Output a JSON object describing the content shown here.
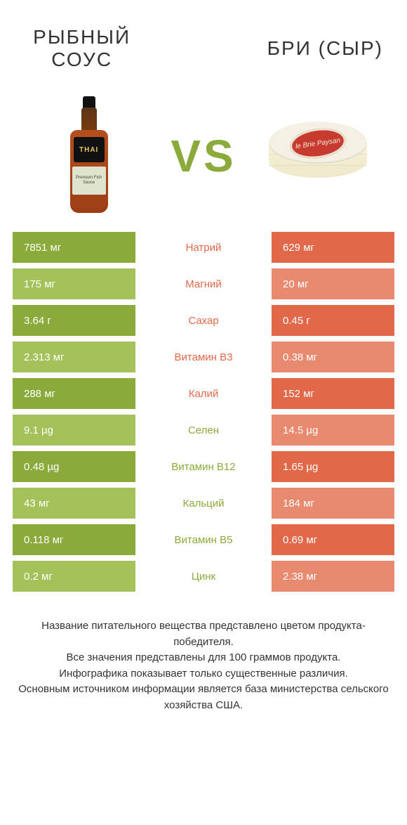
{
  "palette": {
    "green_strong": "#8aaa3b",
    "green_light": "#a5c15a",
    "orange_strong": "#e1694a",
    "orange_light": "#e88a70",
    "text": "#333333",
    "bg": "#ffffff"
  },
  "header": {
    "left_title": "Рыбный соус",
    "right_title": "Бри (сыр)",
    "vs_label": "VS",
    "bottle_brand": "THAI",
    "bottle_sub": "Premium Fish Sauce",
    "brie_label": "le Brie Paysan"
  },
  "table": {
    "rows": [
      {
        "left": "7851 мг",
        "mid": "Натрий",
        "right": "629 мг",
        "winner": "left"
      },
      {
        "left": "175 мг",
        "mid": "Магний",
        "right": "20 мг",
        "winner": "left"
      },
      {
        "left": "3.64 г",
        "mid": "Сахар",
        "right": "0.45 г",
        "winner": "left"
      },
      {
        "left": "2.313 мг",
        "mid": "Витамин B3",
        "right": "0.38 мг",
        "winner": "left"
      },
      {
        "left": "288 мг",
        "mid": "Калий",
        "right": "152 мг",
        "winner": "left"
      },
      {
        "left": "9.1 µg",
        "mid": "Селен",
        "right": "14.5 µg",
        "winner": "right"
      },
      {
        "left": "0.48 µg",
        "mid": "Витамин B12",
        "right": "1.65 µg",
        "winner": "right"
      },
      {
        "left": "43 мг",
        "mid": "Кальций",
        "right": "184 мг",
        "winner": "right"
      },
      {
        "left": "0.118 мг",
        "mid": "Витамин B5",
        "right": "0.69 мг",
        "winner": "right"
      },
      {
        "left": "0.2 мг",
        "mid": "Цинк",
        "right": "2.38 мг",
        "winner": "right"
      }
    ]
  },
  "footer": {
    "line1": "Название питательного вещества представлено цветом продукта-победителя.",
    "line2": "Все значения представлены для 100 граммов продукта.",
    "line3": "Инфографика показывает только существенные различия.",
    "line4": "Основным источником информации является база министерства сельского хозяйства США."
  }
}
